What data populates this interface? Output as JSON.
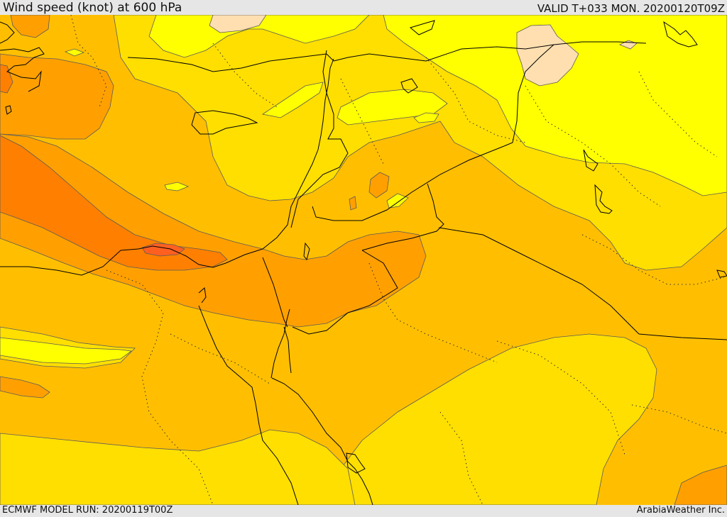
{
  "header": {
    "title": "Wind speed (knot) at 600 hPa",
    "valid": "VALID T+033 MON. 20200120T09Z"
  },
  "footer": {
    "model_run": "ECMWF MODEL RUN: 20200119T00Z",
    "credit": "ArabiaWeather Inc."
  },
  "map": {
    "region": "Eastern Mediterranean and Middle East",
    "colors": {
      "band_lt20": "#ffff00",
      "band_20_30": "#ffdf00",
      "band_30_40": "#ffbf00",
      "band_40_50": "#ffa000",
      "band_50_60": "#ff8000",
      "band_60_70": "#ff6020",
      "band_max_light": "#ffdfaf",
      "border": "#000000",
      "contour": "#5a5a5a"
    }
  }
}
